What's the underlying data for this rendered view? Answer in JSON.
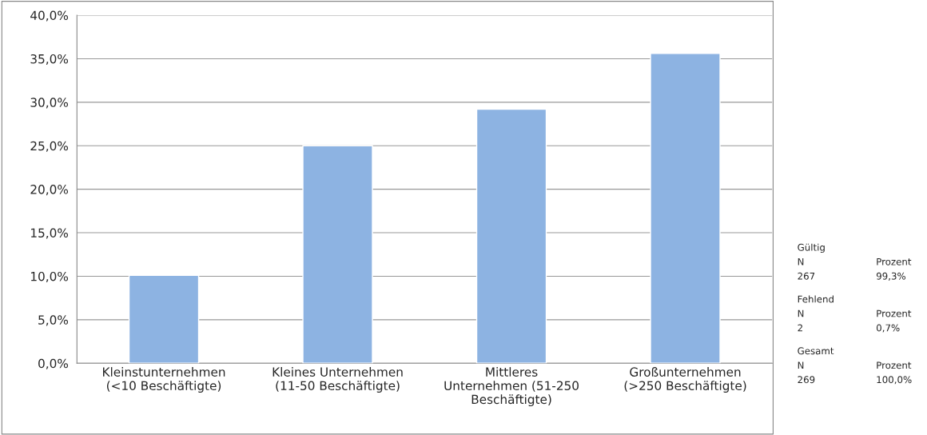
{
  "chart_data": {
    "type": "bar",
    "categories": [
      "Kleinstunternehmen\n(<10 Beschäftigte)",
      "Kleines Unternehmen\n(11-50 Beschäftigte)",
      "Mittleres\nUnternehmen (51-250\nBeschäftigte)",
      "Großunternehmen\n(>250 Beschäftigte)"
    ],
    "values": [
      10.1,
      25.0,
      29.2,
      35.6
    ],
    "color": "#8db3e2",
    "ylim": [
      0,
      40
    ],
    "yticks": [
      {
        "value": 0,
        "label": "0,0%"
      },
      {
        "value": 5,
        "label": "5,0%"
      },
      {
        "value": 10,
        "label": "10,0%"
      },
      {
        "value": 15,
        "label": "15,0%"
      },
      {
        "value": 20,
        "label": "20,0%"
      },
      {
        "value": 25,
        "label": "25,0%"
      },
      {
        "value": 30,
        "label": "30,0%"
      },
      {
        "value": 35,
        "label": "35,0%"
      },
      {
        "value": 40,
        "label": "40,0%"
      }
    ],
    "grid": "y",
    "annotations": [
      "Gültig\nN\tProzent\n267\t99,3%",
      "Fehlend\nN\tProzent\n2\t0,7%",
      "Gesamt\nN\tProzent\n269\t100,0%"
    ]
  }
}
